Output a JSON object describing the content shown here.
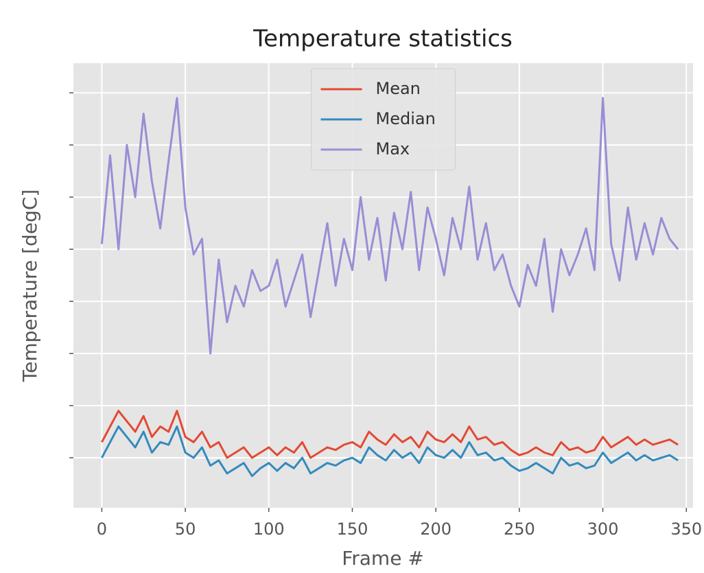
{
  "chart_data": {
    "type": "line",
    "title": "Temperature statistics",
    "x_label": "Frame #",
    "y_label": "Temperature [degC]",
    "x": [
      0,
      5,
      10,
      15,
      20,
      25,
      30,
      35,
      40,
      45,
      50,
      55,
      60,
      65,
      70,
      75,
      80,
      85,
      90,
      95,
      100,
      105,
      110,
      115,
      120,
      125,
      130,
      135,
      140,
      145,
      150,
      155,
      160,
      165,
      170,
      175,
      180,
      185,
      190,
      195,
      200,
      205,
      210,
      215,
      220,
      225,
      230,
      235,
      240,
      245,
      250,
      255,
      260,
      265,
      270,
      275,
      280,
      285,
      290,
      295,
      300,
      305,
      310,
      315,
      320,
      325,
      330,
      335,
      340,
      345
    ],
    "series": [
      {
        "name": "Mean",
        "color": "#E24A33",
        "values": [
          0.3,
          0.6,
          0.9,
          0.7,
          0.5,
          0.8,
          0.4,
          0.6,
          0.5,
          0.9,
          0.4,
          0.3,
          0.5,
          0.2,
          0.3,
          0.0,
          0.1,
          0.2,
          0.0,
          0.1,
          0.2,
          0.05,
          0.2,
          0.1,
          0.3,
          0.0,
          0.1,
          0.2,
          0.15,
          0.25,
          0.3,
          0.2,
          0.5,
          0.35,
          0.25,
          0.45,
          0.3,
          0.4,
          0.2,
          0.5,
          0.35,
          0.3,
          0.45,
          0.3,
          0.6,
          0.35,
          0.4,
          0.25,
          0.3,
          0.15,
          0.05,
          0.1,
          0.2,
          0.1,
          0.05,
          0.3,
          0.15,
          0.2,
          0.1,
          0.15,
          0.4,
          0.2,
          0.3,
          0.4,
          0.25,
          0.35,
          0.25,
          0.3,
          0.35,
          0.25
        ]
      },
      {
        "name": "Median",
        "color": "#348ABD",
        "values": [
          0.0,
          0.3,
          0.6,
          0.4,
          0.2,
          0.5,
          0.1,
          0.3,
          0.25,
          0.6,
          0.1,
          0.0,
          0.2,
          -0.15,
          -0.05,
          -0.3,
          -0.2,
          -0.1,
          -0.35,
          -0.2,
          -0.1,
          -0.25,
          -0.1,
          -0.2,
          0.0,
          -0.3,
          -0.2,
          -0.1,
          -0.15,
          -0.05,
          0.0,
          -0.1,
          0.2,
          0.05,
          -0.05,
          0.15,
          0.0,
          0.1,
          -0.1,
          0.2,
          0.05,
          0.0,
          0.15,
          0.0,
          0.3,
          0.05,
          0.1,
          -0.05,
          0.0,
          -0.15,
          -0.25,
          -0.2,
          -0.1,
          -0.2,
          -0.3,
          0.0,
          -0.15,
          -0.1,
          -0.2,
          -0.15,
          0.1,
          -0.1,
          0.0,
          0.1,
          -0.05,
          0.05,
          -0.05,
          0.0,
          0.05,
          -0.05
        ]
      },
      {
        "name": "Max",
        "color": "#988ED5",
        "values": [
          4.1,
          5.8,
          4.0,
          6.0,
          5.0,
          6.6,
          5.3,
          4.4,
          5.7,
          6.9,
          4.8,
          3.9,
          4.2,
          2.0,
          3.8,
          2.6,
          3.3,
          2.9,
          3.6,
          3.2,
          3.3,
          3.8,
          2.9,
          3.4,
          3.9,
          2.7,
          3.6,
          4.5,
          3.3,
          4.2,
          3.6,
          5.0,
          3.8,
          4.6,
          3.4,
          4.7,
          4.0,
          5.1,
          3.6,
          4.8,
          4.2,
          3.5,
          4.6,
          4.0,
          5.2,
          3.8,
          4.5,
          3.6,
          3.9,
          3.3,
          2.9,
          3.7,
          3.3,
          4.2,
          2.8,
          4.0,
          3.5,
          3.9,
          4.4,
          3.6,
          6.9,
          4.1,
          3.4,
          4.8,
          3.8,
          4.5,
          3.9,
          4.6,
          4.2,
          4.0
        ]
      }
    ],
    "xlim": [
      -17,
      354
    ],
    "xticks": [
      0,
      50,
      100,
      150,
      200,
      250,
      300,
      350
    ],
    "ylim": [
      -0.96,
      7.57
    ],
    "yticks": [
      0,
      1,
      2,
      3,
      4,
      5,
      6,
      7
    ],
    "grid": true,
    "legend": "upper center"
  }
}
